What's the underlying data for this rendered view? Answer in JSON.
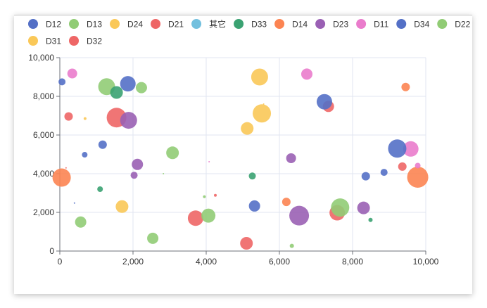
{
  "chart_data": {
    "type": "scatter",
    "title": "",
    "xlabel": "",
    "ylabel": "",
    "xlim": [
      0,
      10000
    ],
    "ylim": [
      0,
      10000
    ],
    "grid": true,
    "legend_position": "top",
    "x_ticks": [
      "0",
      "2,000",
      "4,000",
      "6,000",
      "8,000",
      "10,000"
    ],
    "y_ticks": [
      "0",
      "2,000",
      "4,000",
      "6,000",
      "8,000",
      "10,000"
    ],
    "series": [
      {
        "name": "D12",
        "color": "#5470c6",
        "points": [
          {
            "x": 60,
            "y": 8750,
            "size": 5
          },
          {
            "x": 680,
            "y": 4980,
            "size": 4
          },
          {
            "x": 1170,
            "y": 5500,
            "size": 6
          },
          {
            "x": 1860,
            "y": 8650,
            "size": 11
          },
          {
            "x": 400,
            "y": 2480,
            "size": 1
          },
          {
            "x": 5320,
            "y": 2330,
            "size": 8
          }
        ]
      },
      {
        "name": "D13",
        "color": "#91cc75",
        "points": [
          {
            "x": 1280,
            "y": 8500,
            "size": 12
          },
          {
            "x": 2230,
            "y": 8450,
            "size": 8
          },
          {
            "x": 3080,
            "y": 5080,
            "size": 9
          },
          {
            "x": 570,
            "y": 1500,
            "size": 8
          },
          {
            "x": 2540,
            "y": 660,
            "size": 8
          },
          {
            "x": 2830,
            "y": 4000,
            "size": 1
          },
          {
            "x": 3950,
            "y": 2810,
            "size": 2
          }
        ]
      },
      {
        "name": "D24",
        "color": "#fac858",
        "points": [
          {
            "x": 5460,
            "y": 9000,
            "size": 12
          },
          {
            "x": 5520,
            "y": 7120,
            "size": 13
          },
          {
            "x": 5120,
            "y": 6340,
            "size": 9
          },
          {
            "x": 1700,
            "y": 2300,
            "size": 9
          },
          {
            "x": 690,
            "y": 6850,
            "size": 2
          }
        ]
      },
      {
        "name": "D21",
        "color": "#ee6666",
        "points": [
          {
            "x": 240,
            "y": 6960,
            "size": 6
          },
          {
            "x": 1550,
            "y": 6900,
            "size": 14
          },
          {
            "x": 3710,
            "y": 1700,
            "size": 11
          },
          {
            "x": 5100,
            "y": 400,
            "size": 9
          },
          {
            "x": 7340,
            "y": 7480,
            "size": 8
          },
          {
            "x": 7580,
            "y": 1980,
            "size": 11
          },
          {
            "x": 9360,
            "y": 4370,
            "size": 6
          },
          {
            "x": 4250,
            "y": 2880,
            "size": 2
          }
        ]
      },
      {
        "name": "其它",
        "color": "#73c0de",
        "points": []
      },
      {
        "name": "D33",
        "color": "#3ba272",
        "points": [
          {
            "x": 1550,
            "y": 8200,
            "size": 9
          },
          {
            "x": 1100,
            "y": 3200,
            "size": 4
          },
          {
            "x": 5260,
            "y": 3880,
            "size": 5
          },
          {
            "x": 8490,
            "y": 1610,
            "size": 3
          }
        ]
      },
      {
        "name": "D14",
        "color": "#fc8452",
        "points": [
          {
            "x": 50,
            "y": 3800,
            "size": 13
          },
          {
            "x": 6190,
            "y": 2540,
            "size": 6
          },
          {
            "x": 9450,
            "y": 8480,
            "size": 6
          },
          {
            "x": 9780,
            "y": 3820,
            "size": 15
          }
        ]
      },
      {
        "name": "D23",
        "color": "#9a60b4",
        "points": [
          {
            "x": 1880,
            "y": 6760,
            "size": 12
          },
          {
            "x": 2120,
            "y": 4480,
            "size": 8
          },
          {
            "x": 2030,
            "y": 3920,
            "size": 5
          },
          {
            "x": 6320,
            "y": 4800,
            "size": 7
          },
          {
            "x": 6540,
            "y": 1830,
            "size": 14
          },
          {
            "x": 8300,
            "y": 2230,
            "size": 9
          }
        ]
      },
      {
        "name": "D11",
        "color": "#ea7ccc",
        "points": [
          {
            "x": 340,
            "y": 9180,
            "size": 7
          },
          {
            "x": 6750,
            "y": 9150,
            "size": 8
          },
          {
            "x": 9590,
            "y": 5280,
            "size": 11
          },
          {
            "x": 9780,
            "y": 4420,
            "size": 4
          },
          {
            "x": 4080,
            "y": 4620,
            "size": 1
          }
        ]
      },
      {
        "name": "D34",
        "color": "#5470c6",
        "points": [
          {
            "x": 7230,
            "y": 7720,
            "size": 11
          },
          {
            "x": 9220,
            "y": 5300,
            "size": 13
          },
          {
            "x": 8860,
            "y": 4070,
            "size": 5
          },
          {
            "x": 8360,
            "y": 3870,
            "size": 6
          }
        ]
      },
      {
        "name": "D22",
        "color": "#91cc75",
        "points": [
          {
            "x": 4060,
            "y": 1830,
            "size": 10
          },
          {
            "x": 7660,
            "y": 2250,
            "size": 13
          },
          {
            "x": 6340,
            "y": 270,
            "size": 3
          }
        ]
      },
      {
        "name": "D31",
        "color": "#fac858",
        "points": [
          {
            "x": 5570,
            "y": 7600,
            "size": 1
          }
        ]
      },
      {
        "name": "D32",
        "color": "#ee6666",
        "points": [
          {
            "x": 170,
            "y": 4300,
            "size": 1
          }
        ]
      }
    ]
  }
}
